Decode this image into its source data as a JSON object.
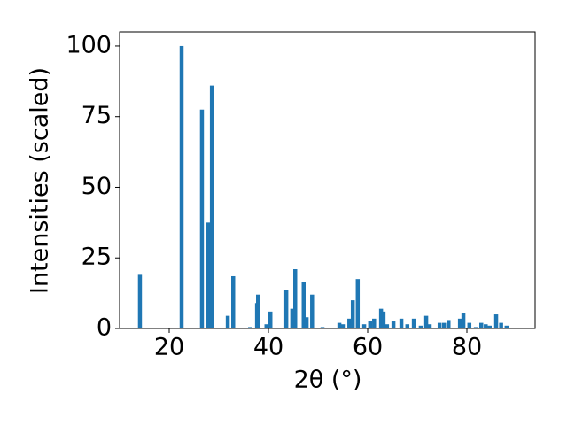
{
  "chart_data": {
    "type": "bar",
    "xlabel": "2θ (°)",
    "ylabel": "Intensities (scaled)",
    "color": "#1f77b4",
    "x": [
      14.1,
      22.5,
      26.6,
      27.9,
      28.6,
      31.8,
      32.9,
      35.2,
      36.3,
      37.7,
      37.9,
      39.6,
      40.4,
      43.6,
      44.8,
      45.4,
      47.1,
      47.7,
      48.8,
      50.9,
      54.3,
      55.0,
      56.3,
      57.0,
      58.0,
      59.3,
      60.5,
      61.3,
      62.7,
      63.2,
      63.9,
      65.2,
      66.8,
      68.0,
      69.3,
      70.7,
      71.8,
      72.5,
      74.5,
      75.4,
      76.3,
      78.6,
      79.3,
      80.5,
      81.8,
      82.9,
      83.8,
      84.6,
      85.9,
      86.9,
      88.0,
      89.1
    ],
    "values": [
      19,
      100,
      77.5,
      37.5,
      86,
      4.5,
      18.5,
      0.3,
      0.5,
      9,
      12,
      1.5,
      6,
      13.5,
      7,
      21,
      16.5,
      4,
      12,
      0.5,
      2,
      1.5,
      3.5,
      10,
      17.5,
      1.5,
      2.5,
      3.5,
      7,
      6,
      1.5,
      2.5,
      3.5,
      1.5,
      3.5,
      1,
      4.5,
      1.5,
      2,
      2,
      3,
      3.5,
      5.5,
      2,
      0.5,
      2,
      1.5,
      1,
      5,
      2,
      1,
      0.3
    ],
    "xlim": [
      10,
      93.75
    ],
    "ylim": [
      0,
      105
    ],
    "xticks": [
      20,
      40,
      60,
      80
    ],
    "yticks": [
      0,
      25,
      50,
      75,
      100
    ]
  }
}
